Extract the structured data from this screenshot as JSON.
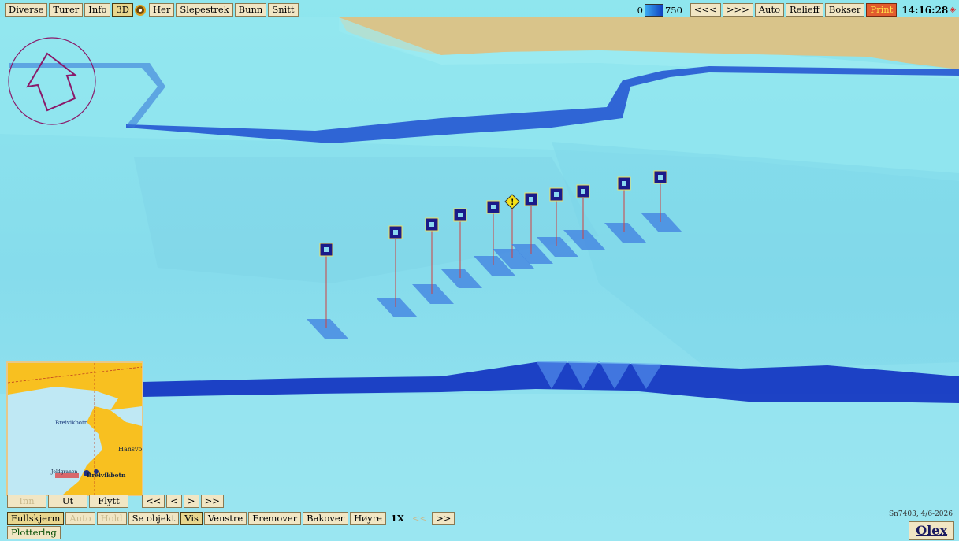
{
  "toolbar": {
    "left": [
      "Diverse",
      "Turer",
      "Info",
      "3D",
      "Her",
      "Slepestrek",
      "Bunn",
      "Snitt"
    ],
    "depth_min": "0",
    "depth_max": "750",
    "right": [
      "<<<",
      ">>>",
      "Auto",
      "Relieff",
      "Bokser",
      "Print"
    ],
    "time": "14:16:28"
  },
  "minimap": {
    "labels": [
      "Breivikbotn",
      "Hansvo",
      "Breivikbotn",
      "Jeldgranen"
    ],
    "nav": [
      "Inn",
      "Ut",
      "Flytt"
    ],
    "arrows": [
      "<<",
      "<",
      ">",
      ">>"
    ]
  },
  "bottom": {
    "buttons": [
      "Fullskjerm",
      "Auto",
      "Hold",
      "Se objekt",
      "Vis",
      "Venstre",
      "Fremover",
      "Bakover",
      "Høyre",
      "1X",
      "<<",
      ">>"
    ],
    "layer": "Plotterlag"
  },
  "version": "Sn7403, 4/6-2026",
  "brand": "Olex",
  "colors": {
    "sea": "#8fe6ee",
    "land": "#d9c48a",
    "deep": "#1030c0",
    "marker": "#1a1a8a",
    "warning": "#f4e11a"
  }
}
